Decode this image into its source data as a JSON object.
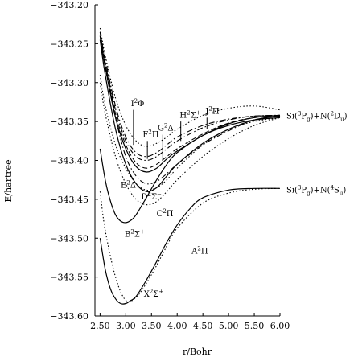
{
  "chart_data": {
    "type": "line",
    "title": "",
    "xlabel": "r/Bohr",
    "ylabel": "E/hartree",
    "xlim": [
      2.4,
      6.0
    ],
    "ylim": [
      -343.6,
      -343.2
    ],
    "xticks": [
      2.5,
      3.0,
      3.5,
      4.0,
      4.5,
      5.0,
      5.5,
      6.0
    ],
    "xtick_labels": [
      "2.50",
      "3.00",
      "3.50",
      "4.00",
      "4.50",
      "5.00",
      "5.50",
      "6.00"
    ],
    "yticks": [
      -343.2,
      -343.25,
      -343.3,
      -343.35,
      -343.4,
      -343.45,
      -343.5,
      -343.55,
      -343.6
    ],
    "ytick_labels": [
      "−343.20",
      "−343.25",
      "−343.30",
      "−343.35",
      "−343.40",
      "−343.45",
      "−343.50",
      "−343.55",
      "−343.60"
    ],
    "grid": false,
    "series": [
      {
        "key": "X2Sigma+",
        "style": "solid",
        "color": "#000000",
        "x": [
          2.5,
          2.6,
          2.7,
          2.8,
          2.9,
          3.0,
          3.1,
          3.2,
          3.4,
          3.6,
          3.8,
          4.0,
          4.25,
          4.5,
          5.0,
          5.5,
          6.0
        ],
        "y": [
          -343.5,
          -343.54,
          -343.565,
          -343.578,
          -343.584,
          -343.584,
          -343.58,
          -343.575,
          -343.554,
          -343.53,
          -343.505,
          -343.483,
          -343.462,
          -343.448,
          -343.438,
          -343.436,
          -343.436
        ]
      },
      {
        "key": "A2Pi",
        "style": "dotted",
        "color": "#000000",
        "x": [
          2.5,
          2.6,
          2.8,
          3.0,
          3.2,
          3.4,
          3.6,
          3.8,
          4.0,
          4.5,
          5.0,
          5.5,
          6.0
        ],
        "y": [
          -343.44,
          -343.49,
          -343.55,
          -343.58,
          -343.576,
          -343.558,
          -343.535,
          -343.51,
          -343.487,
          -343.455,
          -343.442,
          -343.437,
          -343.436
        ]
      },
      {
        "key": "B2Sigma+",
        "style": "solid",
        "color": "#000000",
        "x": [
          2.5,
          2.6,
          2.7,
          2.8,
          2.9,
          3.0,
          3.1,
          3.2,
          3.4,
          3.6,
          3.8,
          4.0,
          4.5,
          5.0,
          5.5,
          6.0
        ],
        "y": [
          -343.385,
          -343.425,
          -343.452,
          -343.47,
          -343.478,
          -343.48,
          -343.477,
          -343.47,
          -343.448,
          -343.425,
          -343.405,
          -343.39,
          -343.368,
          -343.355,
          -343.348,
          -343.345
        ]
      },
      {
        "key": "C2Pi",
        "style": "dotted",
        "color": "#000000",
        "x": [
          2.5,
          2.6,
          2.8,
          3.0,
          3.2,
          3.4,
          3.6,
          3.8,
          4.0,
          4.5,
          5.0,
          5.5,
          6.0
        ],
        "y": [
          -343.3,
          -343.34,
          -343.395,
          -343.43,
          -343.45,
          -343.457,
          -343.453,
          -343.44,
          -343.425,
          -343.395,
          -343.372,
          -343.355,
          -343.345
        ]
      },
      {
        "key": "D2Sigma-",
        "style": "solid",
        "color": "#000000",
        "x": [
          2.5,
          2.6,
          2.8,
          3.0,
          3.2,
          3.4,
          3.6,
          3.8,
          4.0,
          4.5,
          5.0,
          5.5,
          6.0
        ],
        "y": [
          -343.245,
          -343.29,
          -343.36,
          -343.405,
          -343.43,
          -343.44,
          -343.435,
          -343.42,
          -343.405,
          -343.378,
          -343.36,
          -343.348,
          -343.343
        ]
      },
      {
        "key": "E2Delta",
        "style": "dashdot",
        "color": "#000000",
        "x": [
          2.5,
          2.6,
          2.8,
          3.0,
          3.2,
          3.4,
          3.6,
          3.8,
          4.0,
          4.5,
          5.0,
          5.5,
          6.0
        ],
        "y": [
          -343.24,
          -343.28,
          -343.345,
          -343.395,
          -343.42,
          -343.43,
          -343.427,
          -343.417,
          -343.405,
          -343.38,
          -343.362,
          -343.348,
          -343.343
        ]
      },
      {
        "key": "F2Pi",
        "style": "solid",
        "color": "#000000",
        "x": [
          2.5,
          2.6,
          2.8,
          3.0,
          3.2,
          3.4,
          3.6,
          3.8,
          4.0,
          4.5,
          5.0,
          5.5,
          6.0
        ],
        "y": [
          -343.24,
          -343.28,
          -343.345,
          -343.385,
          -343.408,
          -343.415,
          -343.41,
          -343.398,
          -343.388,
          -343.368,
          -343.353,
          -343.345,
          -343.342
        ]
      },
      {
        "key": "G2Delta",
        "style": "dashed",
        "color": "#000000",
        "x": [
          2.5,
          2.6,
          2.8,
          3.0,
          3.2,
          3.4,
          3.6,
          3.8,
          4.0,
          4.5,
          5.0,
          5.5,
          6.0
        ],
        "y": [
          -343.235,
          -343.275,
          -343.34,
          -343.38,
          -343.403,
          -343.41,
          -343.405,
          -343.395,
          -343.385,
          -343.366,
          -343.352,
          -343.345,
          -343.342
        ]
      },
      {
        "key": "H2Sigma+",
        "style": "dashdot",
        "color": "#000000",
        "x": [
          2.5,
          2.6,
          2.8,
          3.0,
          3.2,
          3.4,
          3.6,
          3.8,
          4.0,
          4.5,
          5.0,
          5.5,
          6.0
        ],
        "y": [
          -343.235,
          -343.27,
          -343.33,
          -343.37,
          -343.39,
          -343.395,
          -343.39,
          -343.38,
          -343.37,
          -343.355,
          -343.347,
          -343.343,
          -343.342
        ]
      },
      {
        "key": "I2Phi",
        "style": "dashdot",
        "color": "#000000",
        "x": [
          2.5,
          2.6,
          2.8,
          3.0,
          3.2,
          3.4,
          3.6,
          3.8,
          4.0,
          4.5,
          5.0,
          5.5,
          6.0
        ],
        "y": [
          -343.24,
          -343.275,
          -343.335,
          -343.375,
          -343.395,
          -343.4,
          -343.395,
          -343.385,
          -343.375,
          -343.358,
          -343.348,
          -343.343,
          -343.342
        ]
      },
      {
        "key": "J2Pi",
        "style": "dotted",
        "color": "#000000",
        "x": [
          2.5,
          2.6,
          2.8,
          3.0,
          3.2,
          3.4,
          3.6,
          3.8,
          4.0,
          4.5,
          5.0,
          5.5,
          6.0
        ],
        "y": [
          -343.23,
          -343.265,
          -343.32,
          -343.355,
          -343.375,
          -343.382,
          -343.378,
          -343.37,
          -343.36,
          -343.342,
          -343.333,
          -343.33,
          -343.335
        ]
      },
      {
        "key": "extra-dotted-lower",
        "style": "dotted",
        "color": "#000000",
        "x": [
          2.5,
          2.6,
          2.8,
          3.0,
          3.2,
          3.4,
          3.6,
          3.8,
          4.0,
          4.5,
          5.0,
          5.5,
          6.0
        ],
        "y": [
          -343.29,
          -343.33,
          -343.38,
          -343.41,
          -343.43,
          -343.438,
          -343.435,
          -343.425,
          -343.41,
          -343.38,
          -343.36,
          -343.35,
          -343.345
        ]
      }
    ],
    "state_labels": [
      {
        "key": "X2Sigma+",
        "base": "X",
        "sup": "2",
        "sym": "Σ",
        "sup2": "+",
        "x": 3.35,
        "y": -343.575,
        "leader": null
      },
      {
        "key": "A2Pi",
        "base": "A",
        "sup": "2",
        "sym": "Π",
        "sup2": "",
        "x": 4.28,
        "y": -343.52,
        "leader": null
      },
      {
        "key": "B2Sigma+",
        "base": "B",
        "sup": "2",
        "sym": "Σ",
        "sup2": "+",
        "x": 2.98,
        "y": -343.498,
        "leader": null
      },
      {
        "key": "C2Pi",
        "base": "C",
        "sup": "2",
        "sym": "Π",
        "sup2": "",
        "x": 3.6,
        "y": -343.472,
        "leader": null
      },
      {
        "key": "D2Sigma-",
        "base": "D",
        "sup": "2",
        "sym": "Σ",
        "sup2": "−",
        "x": 3.3,
        "y": -343.45,
        "leader": null
      },
      {
        "key": "E2Delta",
        "base": "E",
        "sup": "2",
        "sym": "Δ",
        "sup2": "",
        "x": 2.9,
        "y": -343.435,
        "leader": null
      },
      {
        "key": "F2Pi",
        "base": "F",
        "sup": "2",
        "sym": "Π",
        "sup2": "",
        "x": 3.33,
        "y": -343.37,
        "leader": [
          3.42,
          -343.375,
          3.42,
          -343.398
        ]
      },
      {
        "key": "G2Delta",
        "base": "G",
        "sup": "2",
        "sym": "Δ",
        "sup2": "",
        "x": 3.62,
        "y": -343.362,
        "leader": [
          3.72,
          -343.367,
          3.72,
          -343.4
        ]
      },
      {
        "key": "H2Sigma+",
        "base": "H",
        "sup": "2",
        "sym": "Σ",
        "sup2": "+",
        "x": 4.05,
        "y": -343.345,
        "leader": [
          4.07,
          -343.35,
          4.07,
          -343.375
        ]
      },
      {
        "key": "I2Phi",
        "base": "I",
        "sup": "2",
        "sym": "Φ",
        "sup2": "",
        "x": 3.1,
        "y": -343.33,
        "leader": [
          3.15,
          -343.335,
          3.15,
          -343.38
        ]
      },
      {
        "key": "J2Pi",
        "base": "J",
        "sup": "2",
        "sym": "Π",
        "sup2": "",
        "x": 4.55,
        "y": -343.34,
        "leader": [
          4.58,
          -343.345,
          4.58,
          -343.36
        ]
      }
    ],
    "asymptotes": [
      {
        "text_pre": "Si(",
        "sup1": "3",
        "mid1": "P",
        "sub1": "g",
        "mid2": ")+N(",
        "sup2": "2",
        "mid3": "D",
        "sub2": "u",
        "post": ")",
        "y": -343.342
      },
      {
        "text_pre": "Si(",
        "sup1": "3",
        "mid1": "P",
        "sub1": "g",
        "mid2": ")+N(",
        "sup2": "4",
        "mid3": "S",
        "sub2": "u",
        "post": ")",
        "y": -343.437
      }
    ]
  }
}
